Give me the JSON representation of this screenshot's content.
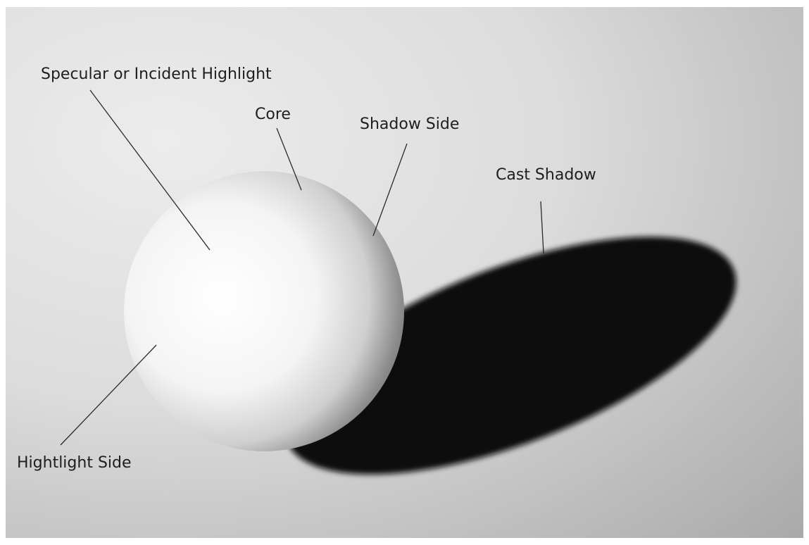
{
  "labels": {
    "specular": "Specular or Incident Highlight",
    "core": "Core",
    "shadow_side": "Shadow Side",
    "cast_shadow": "Cast Shadow",
    "highlight_side": "Hightlight Side"
  }
}
